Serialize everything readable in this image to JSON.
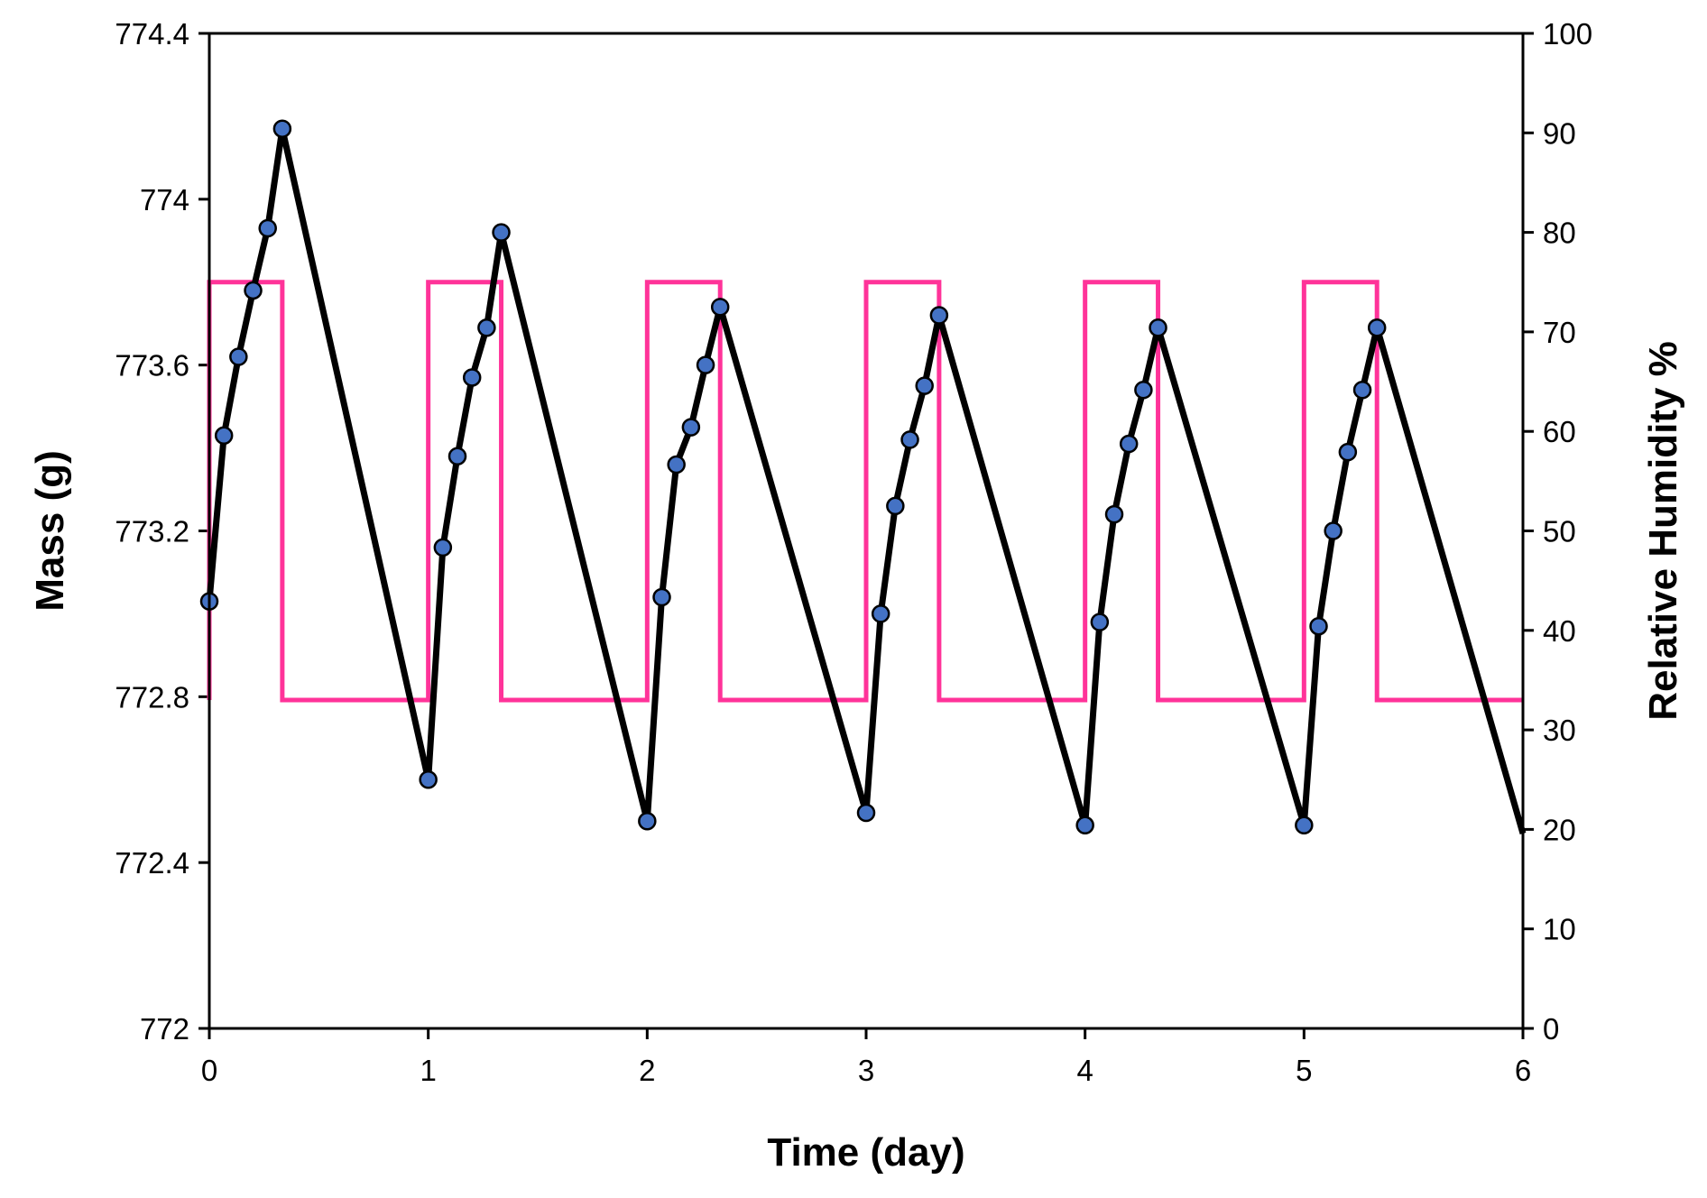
{
  "chart_data": {
    "type": "line",
    "xlabel": "Time (day)",
    "ylabel": "Mass (g)",
    "y2label": "Relative Humidity %",
    "xlim": [
      0,
      6
    ],
    "ylim": [
      772,
      774.4
    ],
    "y2lim": [
      0,
      100
    ],
    "x_ticks": [
      "0",
      "1",
      "2",
      "3",
      "4",
      "5",
      "6"
    ],
    "y_ticks": [
      "772",
      "772.4",
      "772.8",
      "773.2",
      "773.6",
      "774",
      "774.4"
    ],
    "y2_ticks": [
      "0",
      "10",
      "20",
      "30",
      "40",
      "50",
      "60",
      "70",
      "80",
      "90",
      "100"
    ],
    "grid": false,
    "series": [
      {
        "name": "Mass",
        "axis": "left",
        "color": "#000000",
        "marker_color": "#4472C4",
        "x": [
          0,
          0.0667,
          0.1333,
          0.2,
          0.2667,
          0.3333,
          1,
          1.0667,
          1.1333,
          1.2,
          1.2667,
          1.3333,
          2,
          2.0667,
          2.1333,
          2.2,
          2.2667,
          2.3333,
          3,
          3.0667,
          3.1333,
          3.2,
          3.2667,
          3.3333,
          4,
          4.0667,
          4.1333,
          4.2,
          4.2667,
          4.3333,
          5,
          5.0667,
          5.1333,
          5.2,
          5.2667,
          5.3333
        ],
        "y": [
          773.03,
          773.43,
          773.62,
          773.78,
          773.93,
          774.17,
          772.6,
          773.16,
          773.38,
          773.57,
          773.69,
          773.92,
          772.5,
          773.04,
          773.36,
          773.45,
          773.6,
          773.74,
          772.52,
          773.0,
          773.26,
          773.42,
          773.55,
          773.72,
          772.49,
          772.98,
          773.24,
          773.41,
          773.54,
          773.69,
          772.49,
          772.97,
          773.2,
          773.39,
          773.54,
          773.69
        ],
        "line_end": {
          "x": 6,
          "y": 772.47
        }
      },
      {
        "name": "Relative Humidity",
        "axis": "right",
        "color": "#FF3399",
        "type": "step",
        "x": [
          0,
          0,
          0.3333,
          0.3333,
          1,
          1,
          1.3333,
          1.3333,
          2,
          2,
          2.3333,
          2.3333,
          3,
          3,
          3.3333,
          3.3333,
          4,
          4,
          4.3333,
          4.3333,
          5,
          5,
          5.3333,
          5.3333,
          6
        ],
        "y": [
          33,
          75,
          75,
          33,
          33,
          75,
          75,
          33,
          33,
          75,
          75,
          33,
          33,
          75,
          75,
          33,
          33,
          75,
          75,
          33,
          33,
          75,
          75,
          33,
          33
        ]
      }
    ]
  }
}
